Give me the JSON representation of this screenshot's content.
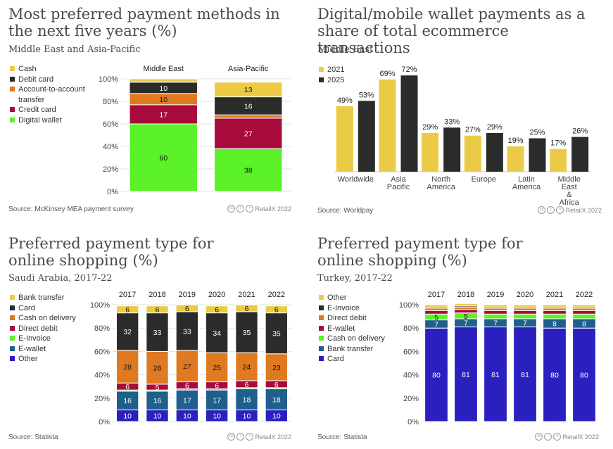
{
  "chart_data": [
    {
      "type": "bar",
      "stacked": true,
      "title": "Most preferred payment methods in the next five years (%)",
      "subtitle": "Middle East and Asia-Pacific",
      "source": "Source: McKinsey MEA payment survey",
      "license": "RetailX 2022",
      "categories": [
        "Middle East",
        "Asia-Pacific"
      ],
      "series": [
        {
          "name": "Digital wallet",
          "color": "#5cf22a",
          "values": [
            60,
            38
          ]
        },
        {
          "name": "Credit card",
          "color": "#a80a3c",
          "values": [
            17,
            27
          ]
        },
        {
          "name": "Account-to-account transfer",
          "color": "#df7a20",
          "values": [
            10,
            3
          ]
        },
        {
          "name": "Debit card",
          "color": "#2b2b2b",
          "values": [
            10,
            16
          ]
        },
        {
          "name": "Cash",
          "color": "#ebcb45",
          "values": [
            3,
            13
          ]
        }
      ],
      "ylim": [
        0,
        100
      ],
      "yticks": [
        "0%",
        "20%",
        "40%",
        "60%",
        "80%",
        "100%"
      ]
    },
    {
      "type": "bar",
      "title": "Digital/mobile wallet payments as a share of total ecommerce transactions",
      "subtitle": "Middle East",
      "source": "Source: Worldpay",
      "license": "RetailX 2022",
      "categories": [
        "Worldwide",
        "Asia Pacific",
        "North America",
        "Europe",
        "Latin America",
        "Middle East & Africa"
      ],
      "series": [
        {
          "name": "2021",
          "color": "#ebcb45",
          "values": [
            49,
            69,
            29,
            27,
            19,
            17
          ]
        },
        {
          "name": "2025",
          "color": "#2b2b2b",
          "values": [
            53,
            72,
            33,
            29,
            25,
            26
          ]
        }
      ],
      "ylim": [
        0,
        80
      ]
    },
    {
      "type": "bar",
      "stacked": true,
      "title": "Preferred payment type for online shopping (%)",
      "subtitle": "Saudi Arabia, 2017-22",
      "source": "Source: Statista",
      "license": "RetailX 2022",
      "categories": [
        "2017",
        "2018",
        "2019",
        "2020",
        "2021",
        "2022"
      ],
      "series": [
        {
          "name": "Other",
          "color": "#2a1fbf",
          "values": [
            10,
            10,
            10,
            10,
            10,
            10
          ]
        },
        {
          "name": "E-wallet",
          "color": "#1e5f8c",
          "values": [
            16,
            16,
            17,
            17,
            18,
            18
          ]
        },
        {
          "name": "E-Invoice",
          "color": "#5cf22a",
          "values": [
            1,
            1,
            1,
            1,
            1,
            1
          ]
        },
        {
          "name": "Direct debit",
          "color": "#a80a3c",
          "values": [
            6,
            5,
            6,
            6,
            6,
            6
          ]
        },
        {
          "name": "Cash on delivery",
          "color": "#df7a20",
          "values": [
            28,
            28,
            27,
            25,
            24,
            23
          ]
        },
        {
          "name": "Card",
          "color": "#2b2b2b",
          "values": [
            32,
            33,
            33,
            34,
            35,
            35
          ]
        },
        {
          "name": "Bank transfer",
          "color": "#ebcb45",
          "values": [
            6,
            6,
            6,
            6,
            6,
            6
          ]
        }
      ],
      "ylim": [
        0,
        100
      ],
      "yticks": [
        "0%",
        "20%",
        "40%",
        "60%",
        "80%",
        "100%"
      ]
    },
    {
      "type": "bar",
      "stacked": true,
      "title": "Preferred payment type for online shopping (%)",
      "subtitle": "Turkey, 2017-22",
      "source": "Source: Statista",
      "license": "RetailX 2022",
      "categories": [
        "2017",
        "2018",
        "2019",
        "2020",
        "2021",
        "2022"
      ],
      "series": [
        {
          "name": "Card",
          "color": "#2a1fbf",
          "values": [
            80,
            81,
            81,
            81,
            80,
            80
          ]
        },
        {
          "name": "Bank transfer",
          "color": "#1e5f8c",
          "values": [
            7,
            7,
            7,
            7,
            8,
            8
          ]
        },
        {
          "name": "Cash on delivery",
          "color": "#5cf22a",
          "values": [
            5,
            5,
            4,
            4,
            4,
            4
          ]
        },
        {
          "name": "E-wallet",
          "color": "#a80a3c",
          "values": [
            3,
            3,
            3,
            3,
            3,
            3
          ]
        },
        {
          "name": "Direct debit",
          "color": "#df7a20",
          "values": [
            2,
            2,
            2,
            2,
            2,
            2
          ]
        },
        {
          "name": "E-Invoice",
          "color": "#2b2b2b",
          "values": [
            1,
            1,
            1,
            1,
            1,
            1
          ]
        },
        {
          "name": "Other",
          "color": "#ebcb45",
          "values": [
            2,
            2,
            2,
            2,
            2,
            2
          ]
        }
      ],
      "ylim": [
        0,
        100
      ],
      "yticks": [
        "0%",
        "20%",
        "40%",
        "60%",
        "80%",
        "100%"
      ]
    }
  ],
  "panels": [
    {
      "legend": [
        "Cash",
        "Debit card",
        "Account-to-account transfer",
        "Credit card",
        "Digital wallet"
      ],
      "legend_colors": [
        "#ebcb45",
        "#2b2b2b",
        "#df7a20",
        "#a80a3c",
        "#5cf22a"
      ]
    },
    {
      "legend": [
        "2021",
        "2025"
      ],
      "legend_colors": [
        "#ebcb45",
        "#2b2b2b"
      ]
    },
    {
      "legend": [
        "Bank transfer",
        "Card",
        "Cash on delivery",
        "Direct debit",
        "E-Invoice",
        "E-wallet",
        "Other"
      ],
      "legend_colors": [
        "#ebcb45",
        "#2b2b2b",
        "#df7a20",
        "#a80a3c",
        "#5cf22a",
        "#1e5f8c",
        "#2a1fbf"
      ]
    },
    {
      "legend": [
        "Other",
        "E-Invoice",
        "Direct debit",
        "E-wallet",
        "Cash on delivery",
        "Bank transfer",
        "Card"
      ],
      "legend_colors": [
        "#ebcb45",
        "#2b2b2b",
        "#df7a20",
        "#a80a3c",
        "#5cf22a",
        "#1e5f8c",
        "#2a1fbf"
      ]
    }
  ],
  "label_overrides": {
    "third_hidden": {
      "series": 2
    }
  }
}
